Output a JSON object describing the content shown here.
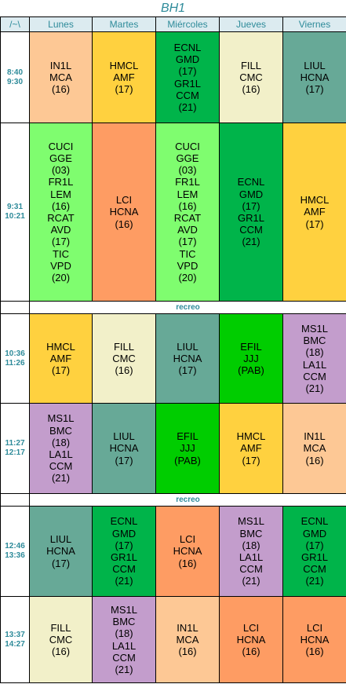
{
  "title": "BH1",
  "corner": "/~\\",
  "days": [
    "Lunes",
    "Martes",
    "Miércoles",
    "Jueves",
    "Viernes"
  ],
  "break_label": "recreo",
  "colors": {
    "peach": "#fdc895",
    "yellow": "#ffd13f",
    "green": "#00b44a",
    "cream": "#f2f0c9",
    "teal": "#67a997",
    "lightgreen": "#7ffd6f",
    "orange": "#fe9c63",
    "brightgreen": "#00cd00",
    "lavender": "#c39dcc"
  },
  "slots": [
    {
      "time": [
        "8:40",
        "9:30"
      ],
      "cells": [
        {
          "color": "peach",
          "lines": [
            "IN1L",
            "MCA",
            "(16)"
          ]
        },
        {
          "color": "yellow",
          "lines": [
            "HMCL",
            "AMF",
            "(17)"
          ]
        },
        {
          "color": "green",
          "lines": [
            "ECNL",
            "GMD",
            "(17)",
            "GR1L",
            "CCM",
            "(21)"
          ]
        },
        {
          "color": "cream",
          "lines": [
            "FILL",
            "CMC",
            "(16)"
          ]
        },
        {
          "color": "teal",
          "lines": [
            "LIUL",
            "HCNA",
            "(17)"
          ]
        }
      ]
    },
    {
      "time": [
        "9:31",
        "10:21"
      ],
      "cells": [
        {
          "color": "lightgreen",
          "lines": [
            "CUCI",
            "GGE",
            "(03)",
            "FR1L",
            "LEM",
            "(16)",
            "RCAT",
            "AVD",
            "(17)",
            "TIC",
            "VPD",
            "(20)"
          ]
        },
        {
          "color": "orange",
          "lines": [
            "LCI",
            "HCNA",
            "(16)"
          ]
        },
        {
          "color": "lightgreen",
          "lines": [
            "CUCI",
            "GGE",
            "(03)",
            "FR1L",
            "LEM",
            "(16)",
            "RCAT",
            "AVD",
            "(17)",
            "TIC",
            "VPD",
            "(20)"
          ]
        },
        {
          "color": "green",
          "lines": [
            "ECNL",
            "GMD",
            "(17)",
            "GR1L",
            "CCM",
            "(21)"
          ]
        },
        {
          "color": "yellow",
          "lines": [
            "HMCL",
            "AMF",
            "(17)"
          ]
        }
      ]
    },
    {
      "break": true
    },
    {
      "time": [
        "10:36",
        "11:26"
      ],
      "cells": [
        {
          "color": "yellow",
          "lines": [
            "HMCL",
            "AMF",
            "(17)"
          ]
        },
        {
          "color": "cream",
          "lines": [
            "FILL",
            "CMC",
            "(16)"
          ]
        },
        {
          "color": "teal",
          "lines": [
            "LIUL",
            "HCNA",
            "(17)"
          ]
        },
        {
          "color": "brightgreen",
          "lines": [
            "EFIL",
            "JJJ",
            "(PAB)"
          ]
        },
        {
          "color": "lavender",
          "lines": [
            "MS1L",
            "BMC",
            "(18)",
            "LA1L",
            "CCM",
            "(21)"
          ]
        }
      ]
    },
    {
      "time": [
        "11:27",
        "12:17"
      ],
      "cells": [
        {
          "color": "lavender",
          "lines": [
            "MS1L",
            "BMC",
            "(18)",
            "LA1L",
            "CCM",
            "(21)"
          ]
        },
        {
          "color": "teal",
          "lines": [
            "LIUL",
            "HCNA",
            "(17)"
          ]
        },
        {
          "color": "brightgreen",
          "lines": [
            "EFIL",
            "JJJ",
            "(PAB)"
          ]
        },
        {
          "color": "yellow",
          "lines": [
            "HMCL",
            "AMF",
            "(17)"
          ]
        },
        {
          "color": "peach",
          "lines": [
            "IN1L",
            "MCA",
            "(16)"
          ]
        }
      ]
    },
    {
      "break": true
    },
    {
      "time": [
        "12:46",
        "13:36"
      ],
      "cells": [
        {
          "color": "teal",
          "lines": [
            "LIUL",
            "HCNA",
            "(17)"
          ]
        },
        {
          "color": "green",
          "lines": [
            "ECNL",
            "GMD",
            "(17)",
            "GR1L",
            "CCM",
            "(21)"
          ]
        },
        {
          "color": "orange",
          "lines": [
            "LCI",
            "HCNA",
            "(16)"
          ]
        },
        {
          "color": "lavender",
          "lines": [
            "MS1L",
            "BMC",
            "(18)",
            "LA1L",
            "CCM",
            "(21)"
          ]
        },
        {
          "color": "green",
          "lines": [
            "ECNL",
            "GMD",
            "(17)",
            "GR1L",
            "CCM",
            "(21)"
          ]
        }
      ]
    },
    {
      "time": [
        "13:37",
        "14:27"
      ],
      "cells": [
        {
          "color": "cream",
          "lines": [
            "FILL",
            "CMC",
            "(16)"
          ]
        },
        {
          "color": "lavender",
          "lines": [
            "MS1L",
            "BMC",
            "(18)",
            "LA1L",
            "CCM",
            "(21)"
          ]
        },
        {
          "color": "peach",
          "lines": [
            "IN1L",
            "MCA",
            "(16)"
          ]
        },
        {
          "color": "orange",
          "lines": [
            "LCI",
            "HCNA",
            "(16)"
          ]
        },
        {
          "color": "orange",
          "lines": [
            "LCI",
            "HCNA",
            "(16)"
          ]
        }
      ]
    }
  ]
}
